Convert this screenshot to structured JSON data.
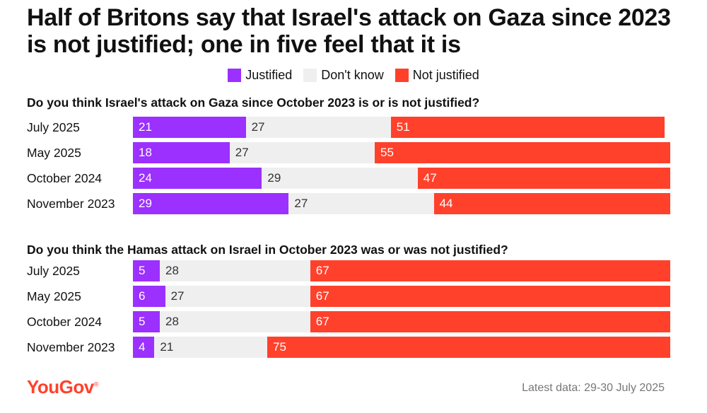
{
  "title": "Half of Britons say that Israel's attack on Gaza since 2023 is not justified; one in five feel that it is",
  "legend": [
    {
      "label": "Justified",
      "color": "#9b30ff"
    },
    {
      "label": "Don't know",
      "color": "#efefef"
    },
    {
      "label": "Not justified",
      "color": "#ff412c"
    }
  ],
  "chart_data": [
    {
      "type": "bar",
      "orientation": "horizontal",
      "stacked": true,
      "title": "Do you think Israel's attack on Gaza since October 2023 is or is not justified?",
      "categories": [
        "July 2025",
        "May 2025",
        "October 2024",
        "November 2023"
      ],
      "series": [
        {
          "name": "Justified",
          "values": [
            21,
            18,
            24,
            29
          ]
        },
        {
          "name": "Don't know",
          "values": [
            27,
            27,
            29,
            27
          ]
        },
        {
          "name": "Not justified",
          "values": [
            51,
            55,
            47,
            44
          ]
        }
      ]
    },
    {
      "type": "bar",
      "orientation": "horizontal",
      "stacked": true,
      "title": "Do you think the Hamas attack on Israel in October 2023 was or was not justified?",
      "categories": [
        "July 2025",
        "May 2025",
        "October 2024",
        "November 2023"
      ],
      "series": [
        {
          "name": "Justified",
          "values": [
            5,
            6,
            5,
            4
          ]
        },
        {
          "name": "Don't know",
          "values": [
            28,
            27,
            28,
            21
          ]
        },
        {
          "name": "Not justified",
          "values": [
            67,
            67,
            67,
            75
          ]
        }
      ]
    }
  ],
  "brand": {
    "logo": "YouGov",
    "mark": "®"
  },
  "footer": "Latest data: 29-30 July 2025"
}
